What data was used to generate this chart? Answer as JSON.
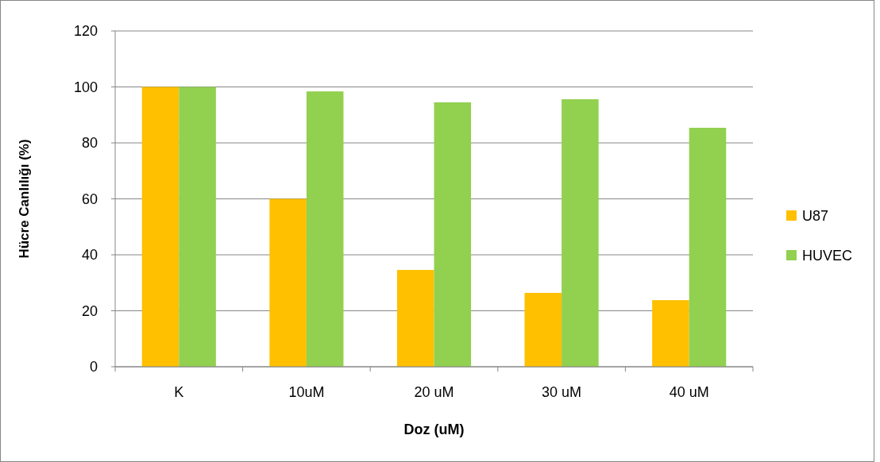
{
  "chart_data": {
    "type": "bar",
    "xlabel": "Doz (uM)",
    "ylabel": "Hücre Canlılığı (%)",
    "categories": [
      "K",
      "10uM",
      "20 uM",
      "30 uM",
      "40 uM"
    ],
    "series": [
      {
        "name": "U87",
        "color": "#ffc000",
        "values": [
          100,
          60,
          34.6,
          26.4,
          23.8
        ]
      },
      {
        "name": "HUVEC",
        "color": "#92d050",
        "values": [
          100,
          98.4,
          94.5,
          95.6,
          85.4
        ]
      }
    ],
    "ylim": [
      0,
      120
    ],
    "yticks": [
      0,
      20,
      40,
      60,
      80,
      100,
      120
    ],
    "grid": "y",
    "legend": "right"
  }
}
